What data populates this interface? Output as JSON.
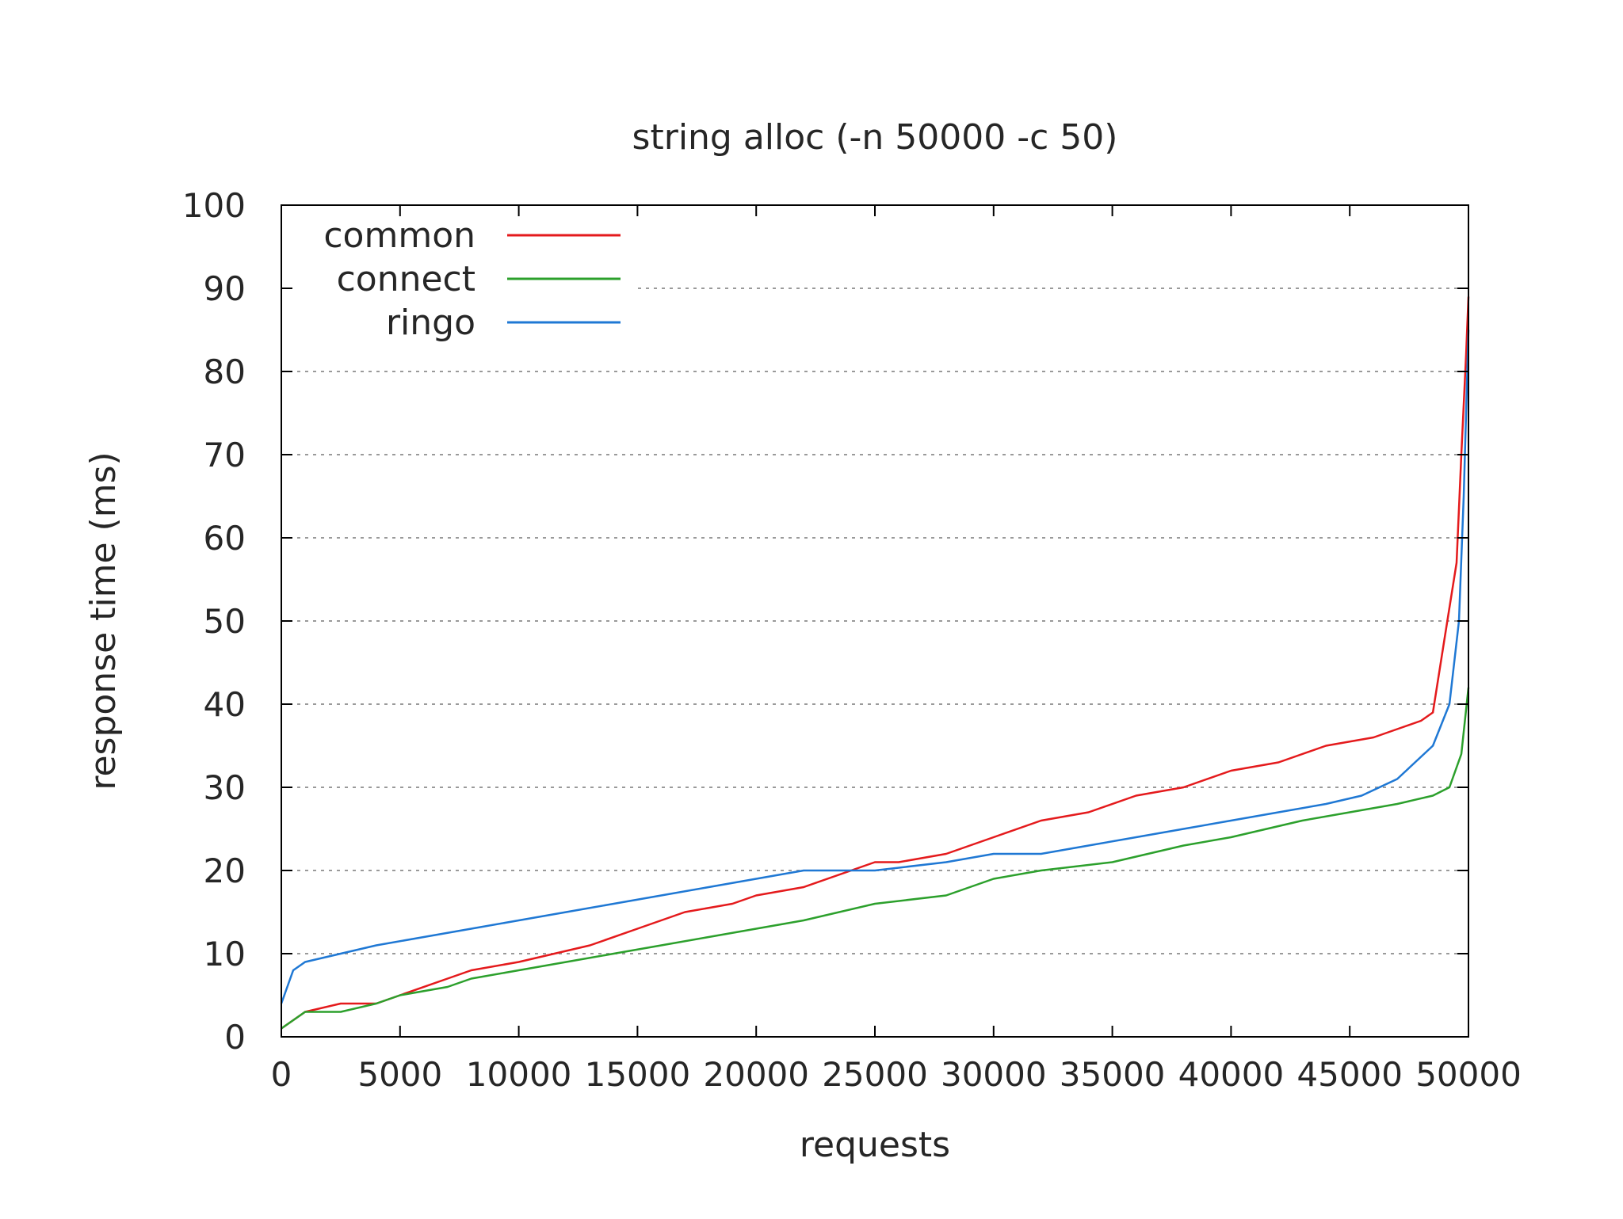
{
  "chart_data": {
    "type": "line",
    "title": "string alloc (-n 50000 -c 50)",
    "xlabel": "requests",
    "ylabel": "response time (ms)",
    "xlim": [
      0,
      50000
    ],
    "ylim": [
      0,
      100
    ],
    "xticks": [
      0,
      5000,
      10000,
      15000,
      20000,
      25000,
      30000,
      35000,
      40000,
      45000,
      50000
    ],
    "yticks": [
      0,
      10,
      20,
      30,
      40,
      50,
      60,
      70,
      80,
      90,
      100
    ],
    "grid": "horizontal dotted",
    "legend_position": "top-left",
    "series": [
      {
        "name": "common",
        "color": "#e41a1c",
        "x": [
          0,
          1000,
          2500,
          4000,
          5000,
          7000,
          8000,
          10000,
          11500,
          13000,
          15000,
          17000,
          19000,
          20000,
          22000,
          25000,
          26000,
          28000,
          30000,
          32000,
          34000,
          36000,
          38000,
          40000,
          42000,
          44000,
          46000,
          47000,
          48000,
          48500,
          49000,
          49500,
          49700,
          49900,
          50000
        ],
        "y": [
          1,
          3,
          4,
          4,
          5,
          7,
          8,
          9,
          10,
          11,
          13,
          15,
          16,
          17,
          18,
          21,
          21,
          22,
          24,
          26,
          27,
          29,
          30,
          32,
          33,
          35,
          36,
          37,
          38,
          39,
          48,
          57,
          70,
          82,
          89
        ]
      },
      {
        "name": "connect",
        "color": "#2ca02c",
        "x": [
          0,
          1000,
          2500,
          4000,
          5000,
          7000,
          8000,
          10000,
          12000,
          14000,
          16000,
          18000,
          20000,
          22000,
          25000,
          28000,
          30000,
          32000,
          35000,
          38000,
          40000,
          43000,
          45000,
          47000,
          48500,
          49200,
          49700,
          50000
        ],
        "y": [
          1,
          3,
          3,
          4,
          5,
          6,
          7,
          8,
          9,
          10,
          11,
          12,
          13,
          14,
          16,
          17,
          19,
          20,
          21,
          23,
          24,
          26,
          27,
          28,
          29,
          30,
          34,
          42
        ]
      },
      {
        "name": "ringo",
        "color": "#1f78d4",
        "x": [
          0,
          500,
          1000,
          2500,
          4000,
          6000,
          8000,
          10000,
          12000,
          14000,
          16000,
          18000,
          20000,
          22000,
          25000,
          28000,
          30000,
          32000,
          34000,
          36000,
          38000,
          40000,
          42000,
          44000,
          45500,
          47000,
          48500,
          49200,
          49600,
          49800,
          50000
        ],
        "y": [
          4,
          8,
          9,
          10,
          11,
          12,
          13,
          14,
          15,
          16,
          17,
          18,
          19,
          20,
          20,
          21,
          22,
          22,
          23,
          24,
          25,
          26,
          27,
          28,
          29,
          31,
          35,
          40,
          50,
          65,
          85
        ]
      }
    ]
  }
}
